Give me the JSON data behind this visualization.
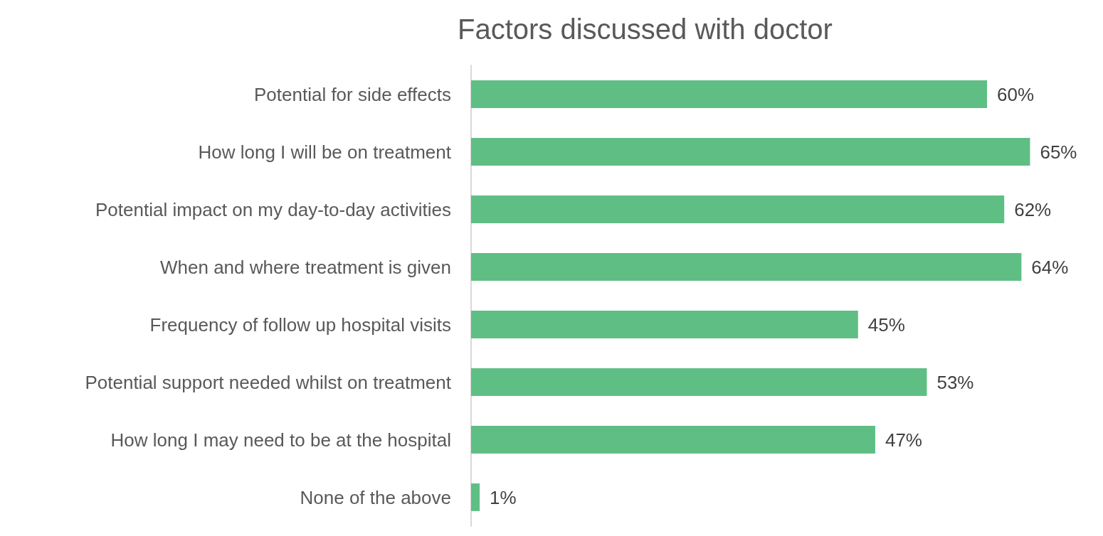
{
  "chart_data": {
    "type": "bar",
    "orientation": "horizontal",
    "title": "Factors discussed with doctor",
    "categories": [
      "Potential for side effects",
      "How long I will be on treatment",
      "Potential impact on my day-to-day activities",
      "When and where treatment is given",
      "Frequency of follow up hospital visits",
      "Potential support needed whilst on treatment",
      "How long I may need to be at the hospital",
      "None of the above"
    ],
    "values": [
      60,
      65,
      62,
      64,
      45,
      53,
      47,
      1
    ],
    "value_labels": [
      "60%",
      "65%",
      "62%",
      "64%",
      "45%",
      "53%",
      "47%",
      "1%"
    ],
    "color": "#5fbe84",
    "tick_labels": "y"
  }
}
